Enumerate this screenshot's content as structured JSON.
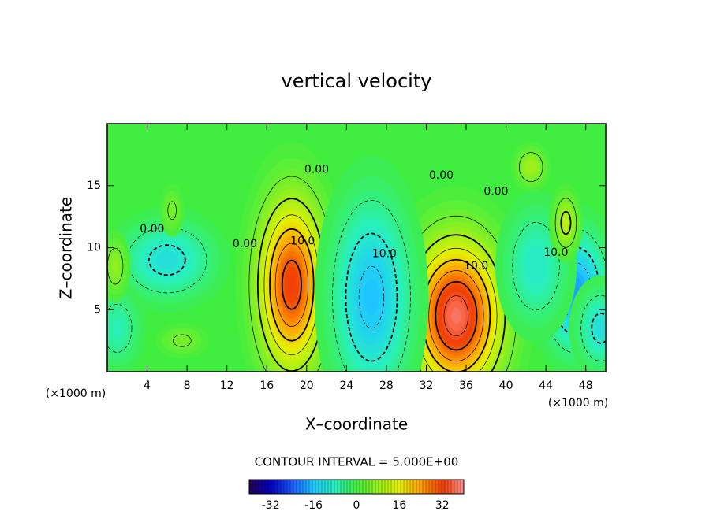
{
  "chart_data": {
    "type": "contour",
    "title": "vertical velocity",
    "x_label": "X–coordinate",
    "y_label": "Z–coordinate",
    "x_unit": "(×1000 m)",
    "y_unit": "(×1000 m)",
    "xlim": [
      0,
      50
    ],
    "ylim": [
      0,
      20
    ],
    "xticks": [
      4,
      8,
      12,
      16,
      20,
      24,
      28,
      32,
      36,
      40,
      44,
      48
    ],
    "yticks": [
      5,
      10,
      15
    ],
    "contour_interval": {
      "value": 5,
      "label": "CONTOUR INTERVAL = 5.000E+00"
    },
    "extrema": [
      {
        "x": 18.5,
        "z": 7,
        "value": 33,
        "x_extent": 2.2,
        "z_extent": 4.5
      },
      {
        "x": 35,
        "z": 4.5,
        "value": 38,
        "x_extent": 3,
        "z_extent": 4
      },
      {
        "x": 26.5,
        "z": 6,
        "value": -17,
        "x_extent": 2.5,
        "z_extent": 5
      },
      {
        "x": 6,
        "z": 9,
        "value": -12,
        "x_extent": 3,
        "z_extent": 2
      },
      {
        "x": 47,
        "z": 6.5,
        "value": -20,
        "x_extent": 2,
        "z_extent": 3
      },
      {
        "x": 49.5,
        "z": 3.5,
        "value": -12,
        "x_extent": 1.5,
        "z_extent": 2
      },
      {
        "x": 43,
        "z": 8.5,
        "value": -10,
        "x_extent": 2,
        "z_extent": 3
      },
      {
        "x": 46,
        "z": 12,
        "value": 12,
        "x_extent": 0.8,
        "z_extent": 1.5
      },
      {
        "x": 1,
        "z": 3.5,
        "value": -8,
        "x_extent": 1.5,
        "z_extent": 2
      },
      {
        "x": 0.8,
        "z": 8.5,
        "value": 8,
        "x_extent": 0.8,
        "z_extent": 1.5
      },
      {
        "x": 6.5,
        "z": 13,
        "value": 6,
        "x_extent": 0.7,
        "z_extent": 1.2
      },
      {
        "x": 7.5,
        "z": 2.5,
        "value": 6,
        "x_extent": 1.5,
        "z_extent": 0.8
      },
      {
        "x": 42.5,
        "z": 16.5,
        "value": 10,
        "x_extent": 1,
        "z_extent": 1
      }
    ],
    "contour_labels": [
      {
        "value": 0,
        "label": "0.00",
        "x": 4.5,
        "z": 11.5
      },
      {
        "value": 0,
        "label": "0.00",
        "x": 13.8,
        "z": 10.3
      },
      {
        "value": 0,
        "label": "0.00",
        "x": 21,
        "z": 16.3
      },
      {
        "value": 10,
        "label": "10.0",
        "x": 19.6,
        "z": 10.5
      },
      {
        "value": 10,
        "label": "10.0",
        "x": 27.8,
        "z": 9.5
      },
      {
        "value": 0,
        "label": "0.00",
        "x": 33.5,
        "z": 15.8
      },
      {
        "value": 10,
        "label": "10.0",
        "x": 37,
        "z": 8.5
      },
      {
        "value": 0,
        "label": "0.00",
        "x": 39,
        "z": 14.5
      },
      {
        "value": 10,
        "label": "10.0",
        "x": 45,
        "z": 9.6
      }
    ],
    "colorbar_lim": [
      -40,
      40
    ],
    "colorbar_ticks": [
      -32,
      -16,
      0,
      16,
      32
    ]
  }
}
